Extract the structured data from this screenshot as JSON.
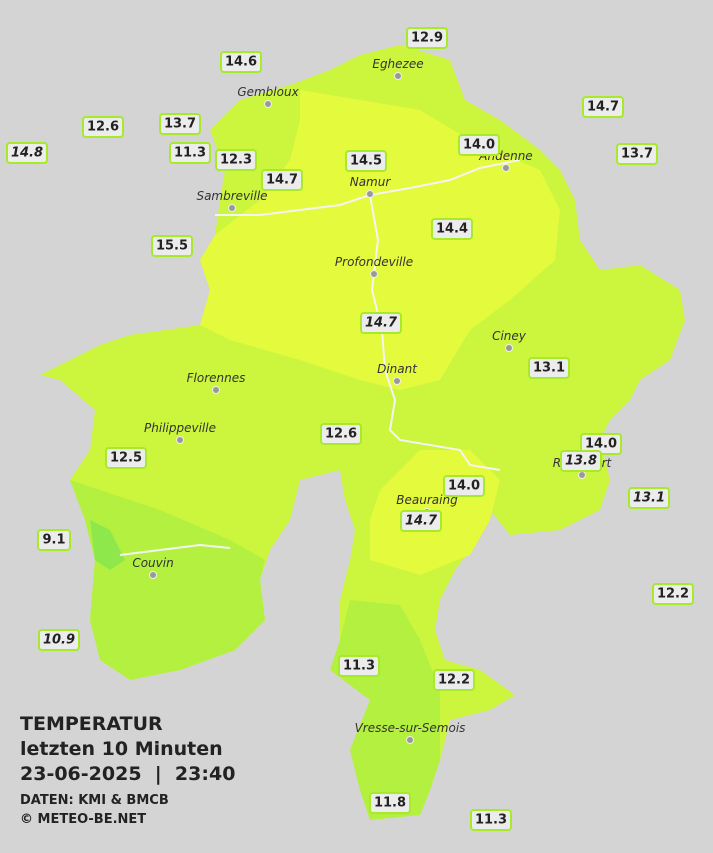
{
  "title": {
    "heading": "TEMPERATUR",
    "period": "letzten 10 Minuten",
    "datetime": "23-06-2025  |  23:40",
    "source": "DATEN: KMI & BMCB",
    "copyright": "© METEO-BE.NET"
  },
  "cities": [
    {
      "label": "Eghezee"
    },
    {
      "label": "Gembloux"
    },
    {
      "label": "Andenne"
    },
    {
      "label": "Namur"
    },
    {
      "label": "Sambreville"
    },
    {
      "label": "Profondeville"
    },
    {
      "label": "Ciney"
    },
    {
      "label": "Dinant"
    },
    {
      "label": "Florennes"
    },
    {
      "label": "Philippeville"
    },
    {
      "label": "Rochefort"
    },
    {
      "label": "Beauraing"
    },
    {
      "label": "Couvin"
    },
    {
      "label": "Vresse-sur-Semois"
    }
  ],
  "stations": [
    {
      "label": "12.9"
    },
    {
      "label": "14.6"
    },
    {
      "label": "14.7"
    },
    {
      "label": "12.6"
    },
    {
      "label": "13.7"
    },
    {
      "label": "14.8",
      "italic": true
    },
    {
      "label": "11.3"
    },
    {
      "label": "12.3"
    },
    {
      "label": "14.0"
    },
    {
      "label": "13.7"
    },
    {
      "label": "14.5"
    },
    {
      "label": "14.7"
    },
    {
      "label": "14.4"
    },
    {
      "label": "15.5"
    },
    {
      "label": "14.7",
      "italic": true
    },
    {
      "label": "13.1"
    },
    {
      "label": "12.6"
    },
    {
      "label": "12.5"
    },
    {
      "label": "14.0"
    },
    {
      "label": "13.8",
      "italic": true
    },
    {
      "label": "14.0"
    },
    {
      "label": "13.1",
      "italic": true
    },
    {
      "label": "14.7",
      "italic": true
    },
    {
      "label": "9.1"
    },
    {
      "label": "12.2"
    },
    {
      "label": "10.9",
      "italic": true
    },
    {
      "label": "11.3"
    },
    {
      "label": "12.2"
    },
    {
      "label": "11.8"
    },
    {
      "label": "11.3"
    }
  ]
}
